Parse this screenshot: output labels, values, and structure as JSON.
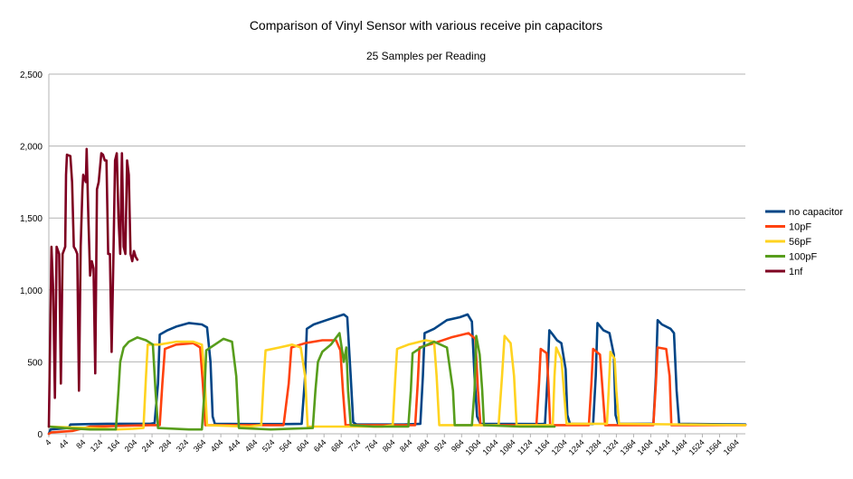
{
  "chart_data": {
    "type": "line",
    "title": "Comparison of Vinyl Sensor with various receive pin capacitors",
    "subtitle": "25 Samples per Reading",
    "xlabel": "",
    "ylabel": "",
    "xlim": [
      4,
      1624
    ],
    "ylim": [
      0,
      2500
    ],
    "yticks": [
      0,
      500,
      1000,
      1500,
      2000,
      2500
    ],
    "ytick_labels": [
      "0",
      "500",
      "1,000",
      "1,500",
      "2,000",
      "2,500"
    ],
    "xtick_values": [
      4,
      44,
      84,
      124,
      164,
      204,
      244,
      284,
      324,
      364,
      404,
      444,
      484,
      524,
      564,
      604,
      644,
      684,
      724,
      764,
      804,
      844,
      884,
      924,
      964,
      1004,
      1044,
      1084,
      1124,
      1164,
      1204,
      1244,
      1284,
      1324,
      1364,
      1404,
      1444,
      1484,
      1524,
      1564,
      1604
    ],
    "xtick_labels": [
      "4",
      "44",
      "84",
      "124",
      "164",
      "204",
      "244",
      "284",
      "324",
      "364",
      "404",
      "444",
      "484",
      "524",
      "564",
      "604",
      "644",
      "684",
      "724",
      "764",
      "804",
      "844",
      "884",
      "924",
      "964",
      "1004",
      "1044",
      "1084",
      "1124",
      "1164",
      "1204",
      "1244",
      "1284",
      "1324",
      "1364",
      "1404",
      "1444",
      "1484",
      "1524",
      "1564",
      "1604"
    ],
    "grid": "horizontal",
    "legend_position": "right",
    "series": [
      {
        "name": "no capacitor",
        "color": "#004586",
        "points": [
          [
            4,
            0
          ],
          [
            8,
            30
          ],
          [
            50,
            40
          ],
          [
            54,
            65
          ],
          [
            100,
            68
          ],
          [
            140,
            70
          ],
          [
            240,
            70
          ],
          [
            250,
            75
          ],
          [
            258,
            350
          ],
          [
            262,
            690
          ],
          [
            280,
            720
          ],
          [
            300,
            745
          ],
          [
            330,
            770
          ],
          [
            360,
            760
          ],
          [
            372,
            740
          ],
          [
            380,
            500
          ],
          [
            385,
            120
          ],
          [
            390,
            70
          ],
          [
            470,
            68
          ],
          [
            560,
            68
          ],
          [
            592,
            70
          ],
          [
            600,
            400
          ],
          [
            604,
            730
          ],
          [
            620,
            760
          ],
          [
            650,
            790
          ],
          [
            670,
            810
          ],
          [
            690,
            830
          ],
          [
            698,
            810
          ],
          [
            706,
            400
          ],
          [
            712,
            80
          ],
          [
            720,
            65
          ],
          [
            830,
            65
          ],
          [
            868,
            70
          ],
          [
            874,
            400
          ],
          [
            878,
            700
          ],
          [
            900,
            730
          ],
          [
            930,
            790
          ],
          [
            960,
            810
          ],
          [
            978,
            830
          ],
          [
            988,
            780
          ],
          [
            994,
            400
          ],
          [
            1000,
            120
          ],
          [
            1008,
            70
          ],
          [
            1150,
            68
          ],
          [
            1158,
            70
          ],
          [
            1164,
            400
          ],
          [
            1168,
            720
          ],
          [
            1176,
            690
          ],
          [
            1186,
            650
          ],
          [
            1196,
            630
          ],
          [
            1206,
            450
          ],
          [
            1210,
            130
          ],
          [
            1216,
            70
          ],
          [
            1270,
            68
          ],
          [
            1276,
            400
          ],
          [
            1280,
            770
          ],
          [
            1294,
            720
          ],
          [
            1308,
            700
          ],
          [
            1318,
            550
          ],
          [
            1322,
            130
          ],
          [
            1328,
            70
          ],
          [
            1410,
            70
          ],
          [
            1416,
            400
          ],
          [
            1420,
            790
          ],
          [
            1430,
            760
          ],
          [
            1450,
            730
          ],
          [
            1458,
            700
          ],
          [
            1464,
            300
          ],
          [
            1470,
            70
          ],
          [
            1624,
            65
          ]
        ]
      },
      {
        "name": "10pF",
        "color": "#ff420e",
        "points": [
          [
            4,
            0
          ],
          [
            10,
            10
          ],
          [
            60,
            20
          ],
          [
            100,
            50
          ],
          [
            240,
            60
          ],
          [
            262,
            60
          ],
          [
            268,
            350
          ],
          [
            274,
            590
          ],
          [
            300,
            620
          ],
          [
            340,
            630
          ],
          [
            356,
            600
          ],
          [
            362,
            350
          ],
          [
            368,
            60
          ],
          [
            460,
            60
          ],
          [
            550,
            60
          ],
          [
            562,
            350
          ],
          [
            568,
            600
          ],
          [
            600,
            630
          ],
          [
            640,
            650
          ],
          [
            672,
            650
          ],
          [
            682,
            580
          ],
          [
            688,
            300
          ],
          [
            694,
            60
          ],
          [
            780,
            60
          ],
          [
            856,
            60
          ],
          [
            862,
            350
          ],
          [
            866,
            600
          ],
          [
            900,
            630
          ],
          [
            940,
            670
          ],
          [
            980,
            700
          ],
          [
            996,
            660
          ],
          [
            1002,
            300
          ],
          [
            1008,
            60
          ],
          [
            1138,
            60
          ],
          [
            1144,
            350
          ],
          [
            1148,
            590
          ],
          [
            1162,
            560
          ],
          [
            1166,
            350
          ],
          [
            1170,
            60
          ],
          [
            1260,
            60
          ],
          [
            1266,
            350
          ],
          [
            1270,
            590
          ],
          [
            1286,
            550
          ],
          [
            1292,
            300
          ],
          [
            1298,
            60
          ],
          [
            1410,
            60
          ],
          [
            1416,
            350
          ],
          [
            1420,
            600
          ],
          [
            1440,
            590
          ],
          [
            1448,
            400
          ],
          [
            1452,
            60
          ],
          [
            1624,
            60
          ]
        ]
      },
      {
        "name": "56pF",
        "color": "#ffd320",
        "points": [
          [
            4,
            50
          ],
          [
            50,
            45
          ],
          [
            100,
            40
          ],
          [
            140,
            35
          ],
          [
            160,
            30
          ],
          [
            200,
            35
          ],
          [
            224,
            40
          ],
          [
            230,
            400
          ],
          [
            234,
            620
          ],
          [
            260,
            620
          ],
          [
            300,
            640
          ],
          [
            340,
            640
          ],
          [
            360,
            620
          ],
          [
            366,
            400
          ],
          [
            372,
            60
          ],
          [
            470,
            50
          ],
          [
            498,
            60
          ],
          [
            504,
            400
          ],
          [
            508,
            580
          ],
          [
            540,
            600
          ],
          [
            570,
            620
          ],
          [
            590,
            600
          ],
          [
            600,
            400
          ],
          [
            606,
            50
          ],
          [
            680,
            50
          ],
          [
            780,
            50
          ],
          [
            804,
            60
          ],
          [
            810,
            400
          ],
          [
            814,
            590
          ],
          [
            840,
            620
          ],
          [
            880,
            650
          ],
          [
            900,
            640
          ],
          [
            906,
            400
          ],
          [
            912,
            60
          ],
          [
            1050,
            60
          ],
          [
            1058,
            400
          ],
          [
            1064,
            680
          ],
          [
            1078,
            630
          ],
          [
            1086,
            400
          ],
          [
            1092,
            60
          ],
          [
            1150,
            60
          ],
          [
            1176,
            60
          ],
          [
            1180,
            400
          ],
          [
            1184,
            600
          ],
          [
            1196,
            520
          ],
          [
            1202,
            300
          ],
          [
            1208,
            70
          ],
          [
            1280,
            70
          ],
          [
            1302,
            70
          ],
          [
            1306,
            300
          ],
          [
            1310,
            570
          ],
          [
            1320,
            520
          ],
          [
            1324,
            300
          ],
          [
            1330,
            70
          ],
          [
            1624,
            60
          ]
        ]
      },
      {
        "name": "100pF",
        "color": "#579d1c",
        "points": [
          [
            4,
            50
          ],
          [
            40,
            40
          ],
          [
            100,
            30
          ],
          [
            160,
            30
          ],
          [
            166,
            300
          ],
          [
            170,
            500
          ],
          [
            178,
            600
          ],
          [
            190,
            640
          ],
          [
            210,
            670
          ],
          [
            230,
            650
          ],
          [
            246,
            620
          ],
          [
            252,
            300
          ],
          [
            258,
            40
          ],
          [
            330,
            30
          ],
          [
            360,
            30
          ],
          [
            366,
            300
          ],
          [
            370,
            580
          ],
          [
            390,
            620
          ],
          [
            410,
            660
          ],
          [
            430,
            640
          ],
          [
            440,
            400
          ],
          [
            446,
            40
          ],
          [
            520,
            30
          ],
          [
            618,
            40
          ],
          [
            624,
            300
          ],
          [
            630,
            500
          ],
          [
            640,
            570
          ],
          [
            660,
            620
          ],
          [
            680,
            700
          ],
          [
            690,
            500
          ],
          [
            696,
            600
          ],
          [
            700,
            300
          ],
          [
            706,
            60
          ],
          [
            760,
            50
          ],
          [
            820,
            50
          ],
          [
            840,
            50
          ],
          [
            846,
            300
          ],
          [
            850,
            560
          ],
          [
            870,
            600
          ],
          [
            900,
            640
          ],
          [
            930,
            600
          ],
          [
            944,
            300
          ],
          [
            948,
            60
          ],
          [
            988,
            60
          ],
          [
            994,
            300
          ],
          [
            998,
            680
          ],
          [
            1006,
            550
          ],
          [
            1012,
            300
          ],
          [
            1016,
            60
          ],
          [
            1100,
            50
          ],
          [
            1180,
            50
          ]
        ]
      },
      {
        "name": "1nf",
        "color": "#7e0021",
        "points": [
          [
            4,
            50
          ],
          [
            10,
            1300
          ],
          [
            14,
            1000
          ],
          [
            18,
            250
          ],
          [
            22,
            1300
          ],
          [
            28,
            1250
          ],
          [
            32,
            350
          ],
          [
            36,
            1250
          ],
          [
            42,
            1300
          ],
          [
            44,
            1800
          ],
          [
            46,
            1940
          ],
          [
            54,
            1930
          ],
          [
            58,
            1750
          ],
          [
            62,
            1300
          ],
          [
            66,
            1280
          ],
          [
            70,
            1250
          ],
          [
            74,
            300
          ],
          [
            78,
            1300
          ],
          [
            82,
            1700
          ],
          [
            84,
            1800
          ],
          [
            90,
            1750
          ],
          [
            92,
            1980
          ],
          [
            96,
            1500
          ],
          [
            100,
            1100
          ],
          [
            104,
            1200
          ],
          [
            108,
            1150
          ],
          [
            112,
            420
          ],
          [
            116,
            1700
          ],
          [
            120,
            1750
          ],
          [
            126,
            1950
          ],
          [
            130,
            1940
          ],
          [
            134,
            1900
          ],
          [
            138,
            1900
          ],
          [
            142,
            1250
          ],
          [
            146,
            1250
          ],
          [
            150,
            570
          ],
          [
            154,
            1200
          ],
          [
            158,
            1900
          ],
          [
            162,
            1950
          ],
          [
            166,
            1500
          ],
          [
            170,
            1250
          ],
          [
            174,
            1950
          ],
          [
            178,
            1300
          ],
          [
            182,
            1250
          ],
          [
            186,
            1900
          ],
          [
            190,
            1800
          ],
          [
            194,
            1250
          ],
          [
            198,
            1200
          ],
          [
            202,
            1270
          ],
          [
            206,
            1230
          ],
          [
            210,
            1210
          ]
        ]
      }
    ]
  }
}
